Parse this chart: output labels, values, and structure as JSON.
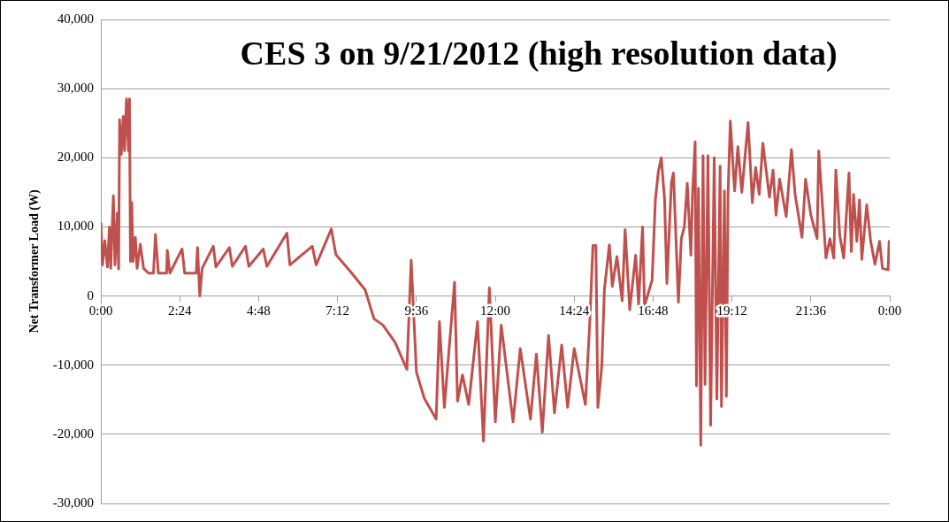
{
  "chart_data": {
    "type": "line",
    "title": "CES 3 on 9/21/2012 (high resolution data)",
    "ylabel": "Net Transformer Load (W)",
    "xlim": [
      0,
      24
    ],
    "xticks": [
      {
        "value": 0,
        "label": "0:00"
      },
      {
        "value": 2.4,
        "label": "2:24"
      },
      {
        "value": 4.8,
        "label": "4:48"
      },
      {
        "value": 7.2,
        "label": "7:12"
      },
      {
        "value": 9.6,
        "label": "9:36"
      },
      {
        "value": 12,
        "label": "12:00"
      },
      {
        "value": 14.4,
        "label": "14:24"
      },
      {
        "value": 16.8,
        "label": "16:48"
      },
      {
        "value": 19.2,
        "label": "19:12"
      },
      {
        "value": 21.6,
        "label": "21:36"
      },
      {
        "value": 24,
        "label": "0:00"
      }
    ],
    "ylim": [
      -30000,
      40000
    ],
    "yticks": [
      {
        "value": -30000,
        "label": "-30,000"
      },
      {
        "value": -20000,
        "label": "-20,000"
      },
      {
        "value": -10000,
        "label": "-10,000"
      },
      {
        "value": 0,
        "label": "0"
      },
      {
        "value": 10000,
        "label": "10,000"
      },
      {
        "value": 20000,
        "label": "20,000"
      },
      {
        "value": 30000,
        "label": "30,000"
      },
      {
        "value": 40000,
        "label": "40,000"
      }
    ],
    "grid": "y",
    "legend": false,
    "marker": "none",
    "line_style": "solid",
    "series": [
      {
        "color": "#c0504d",
        "x": [
          0,
          0.05,
          0.12,
          0.2,
          0.26,
          0.3,
          0.38,
          0.43,
          0.5,
          0.54,
          0.57,
          0.62,
          0.68,
          0.72,
          0.78,
          0.84,
          0.87,
          0.9,
          0.94,
          0.98,
          1.05,
          1.1,
          1.2,
          1.3,
          1.45,
          1.6,
          1.66,
          1.75,
          2.0,
          2.02,
          2.1,
          2.47,
          2.55,
          2.9,
          2.94,
          3.01,
          3.08,
          3.42,
          3.5,
          3.91,
          4.0,
          4.4,
          4.5,
          4.94,
          5.05,
          5.66,
          5.75,
          6.43,
          6.55,
          7.01,
          7.15,
          7.6,
          8.04,
          8.31,
          8.58,
          8.95,
          9.31,
          9.44,
          9.6,
          9.84,
          10.2,
          10.3,
          10.45,
          10.76,
          10.85,
          11.0,
          11.19,
          11.46,
          11.64,
          11.82,
          12.0,
          12.18,
          12.54,
          12.76,
          13.07,
          13.25,
          13.43,
          13.62,
          13.8,
          14.02,
          14.2,
          14.4,
          14.74,
          14.87,
          14.97,
          15.06,
          15.12,
          15.24,
          15.32,
          15.47,
          15.56,
          15.7,
          15.86,
          15.95,
          16.09,
          16.27,
          16.36,
          16.48,
          16.54,
          16.77,
          16.87,
          16.96,
          17.05,
          17.15,
          17.22,
          17.36,
          17.42,
          17.57,
          17.66,
          17.75,
          17.84,
          17.95,
          18.0,
          18.08,
          18.12,
          18.18,
          18.25,
          18.32,
          18.38,
          18.47,
          18.55,
          18.66,
          18.74,
          18.84,
          18.88,
          18.97,
          19.03,
          19.08,
          19.15,
          19.28,
          19.38,
          19.5,
          19.69,
          19.82,
          19.92,
          20.03,
          20.14,
          20.34,
          20.45,
          20.54,
          20.65,
          20.85,
          21.01,
          21.12,
          21.33,
          21.44,
          21.6,
          21.79,
          21.84,
          22.06,
          22.18,
          22.3,
          22.36,
          22.48,
          22.6,
          22.76,
          22.83,
          22.9,
          23.0,
          23.08,
          23.15,
          23.3,
          23.42,
          23.55,
          23.69,
          23.78,
          23.95,
          23.98,
          24.0
        ],
        "values": [
          10500,
          4500,
          8000,
          4200,
          10000,
          4000,
          14500,
          4500,
          12000,
          3900,
          25500,
          20500,
          26000,
          21000,
          28500,
          21000,
          28500,
          5000,
          13500,
          5000,
          8500,
          4000,
          7500,
          4000,
          3300,
          3300,
          8900,
          3300,
          3300,
          6600,
          3300,
          6800,
          3300,
          3300,
          7000,
          0,
          4000,
          7200,
          4200,
          7000,
          4300,
          7200,
          4300,
          6800,
          4300,
          9100,
          4500,
          7200,
          4500,
          9700,
          6000,
          3500,
          900,
          -3300,
          -4200,
          -6700,
          -10600,
          5200,
          -11000,
          -14800,
          -17800,
          -3700,
          -16100,
          2000,
          -15200,
          -11400,
          -15700,
          -3700,
          -21000,
          1200,
          -18200,
          -4200,
          -18200,
          -7600,
          -17800,
          -8400,
          -19700,
          -5700,
          -16900,
          -7100,
          -16100,
          -7600,
          -15700,
          -4200,
          7300,
          7300,
          -16100,
          -10100,
          1000,
          7400,
          1400,
          5700,
          -700,
          9600,
          -2000,
          5900,
          -1200,
          10000,
          -1400,
          2300,
          13900,
          18000,
          20000,
          13900,
          1800,
          16500,
          17800,
          -900,
          8300,
          10000,
          16300,
          5900,
          14700,
          22300,
          -13000,
          15600,
          -21600,
          20300,
          -12800,
          20300,
          -18700,
          20000,
          -14900,
          18800,
          -16000,
          15200,
          -14500,
          14700,
          25300,
          15200,
          21600,
          15000,
          25100,
          13500,
          18600,
          14700,
          22100,
          14300,
          18200,
          11700,
          16900,
          11500,
          21200,
          14700,
          8500,
          16900,
          11700,
          8300,
          21000,
          5500,
          8300,
          5500,
          18200,
          8700,
          5500,
          17800,
          6400,
          14700,
          7900,
          13900,
          5300,
          13200,
          7900,
          4600,
          7900,
          4000,
          3800,
          7900,
          6600
        ]
      }
    ]
  }
}
